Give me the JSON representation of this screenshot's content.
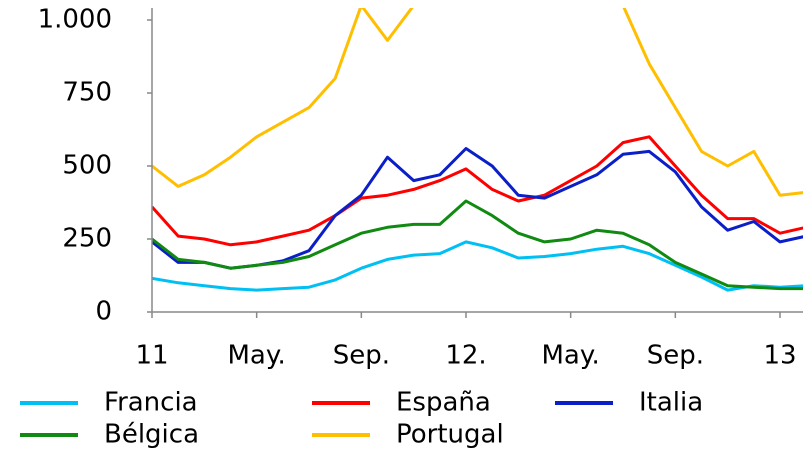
{
  "chart_data": {
    "type": "line",
    "x": [
      0,
      1,
      2,
      3,
      4,
      5,
      6,
      7,
      8,
      9,
      10,
      11,
      12,
      13,
      14,
      15,
      16,
      17,
      18,
      19,
      20,
      21,
      22,
      23,
      24,
      25
    ],
    "xlim": [
      0,
      25.4
    ],
    "xticks": [
      {
        "value": 0,
        "label": "11"
      },
      {
        "value": 4,
        "label": "May."
      },
      {
        "value": 8,
        "label": "Sep."
      },
      {
        "value": 12,
        "label": "12."
      },
      {
        "value": 16,
        "label": "May."
      },
      {
        "value": 20,
        "label": "Sep."
      },
      {
        "value": 24,
        "label": "13"
      }
    ],
    "ylim": [
      0,
      1040
    ],
    "yticks": [
      0,
      250,
      500,
      750,
      {
        "value": 1000,
        "label": "1.000"
      }
    ],
    "grid": false,
    "series": [
      {
        "name": "Francia",
        "color": "#00bff3",
        "values": [
          115,
          100,
          90,
          80,
          75,
          80,
          85,
          110,
          150,
          180,
          195,
          200,
          240,
          220,
          185,
          190,
          200,
          215,
          225,
          200,
          160,
          120,
          75,
          90,
          85,
          90
        ]
      },
      {
        "name": "España",
        "color": "#ff0000",
        "values": [
          360,
          260,
          250,
          230,
          240,
          260,
          280,
          330,
          390,
          400,
          420,
          450,
          490,
          420,
          380,
          400,
          450,
          500,
          580,
          600,
          500,
          400,
          320,
          320,
          270,
          290
        ]
      },
      {
        "name": "Italia",
        "color": "#0a1fc8",
        "values": [
          240,
          170,
          170,
          150,
          160,
          175,
          210,
          330,
          400,
          530,
          450,
          470,
          560,
          500,
          400,
          390,
          430,
          470,
          540,
          550,
          480,
          360,
          280,
          310,
          240,
          260
        ]
      },
      {
        "name": "Bélgica",
        "color": "#108a10",
        "values": [
          250,
          180,
          170,
          150,
          160,
          170,
          190,
          230,
          270,
          290,
          300,
          300,
          380,
          330,
          270,
          240,
          250,
          280,
          270,
          230,
          170,
          130,
          90,
          85,
          80,
          80
        ]
      },
      {
        "name": "Portugal",
        "color": "#ffbf00",
        "values": [
          500,
          430,
          470,
          530,
          600,
          650,
          700,
          800,
          1050,
          930,
          1050,
          1050,
          1050,
          1050,
          1050,
          1050,
          1050,
          1050,
          1050,
          850,
          700,
          550,
          500,
          550,
          400,
          410
        ]
      }
    ]
  }
}
